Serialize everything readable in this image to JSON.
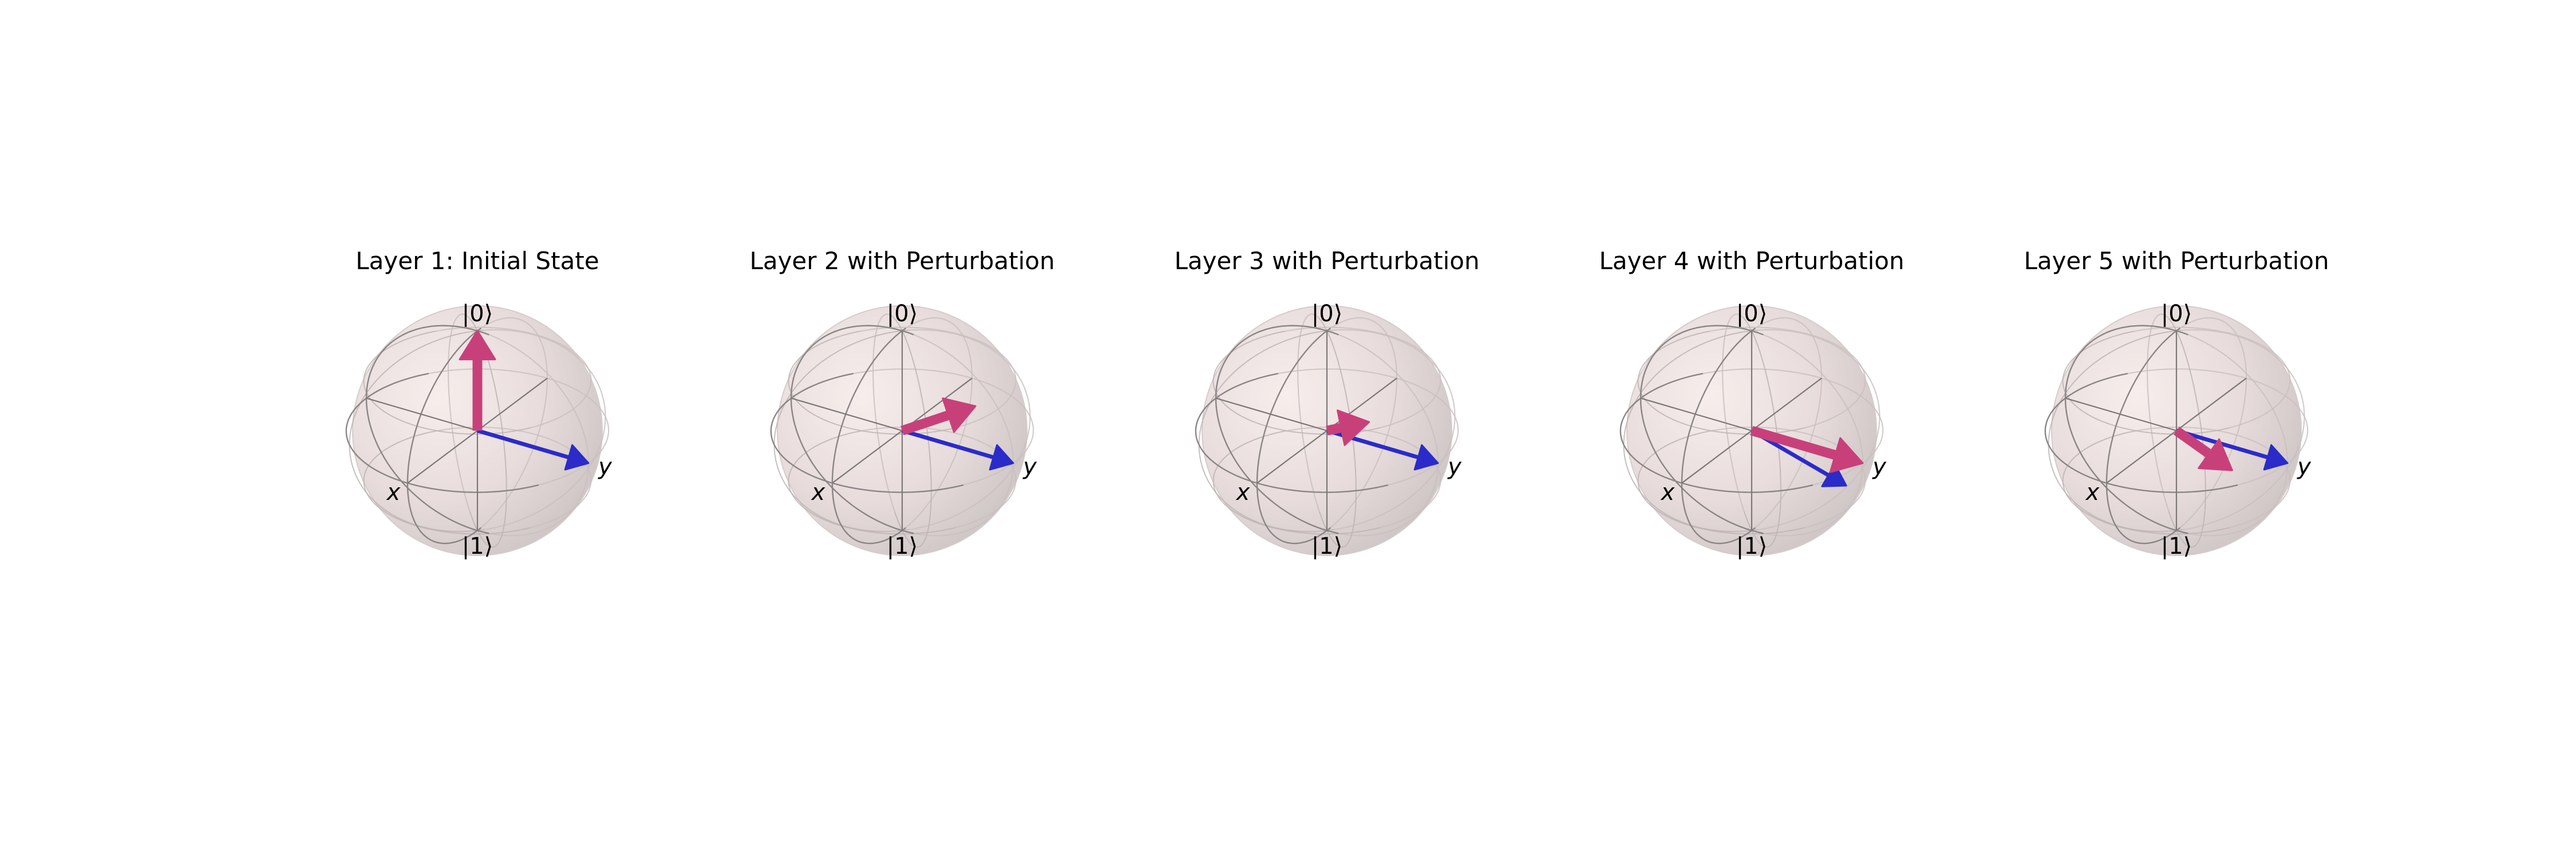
{
  "figure": {
    "panels": [
      {
        "title": "Layer 1: Initial State",
        "labels": {
          "north": "|0⟩",
          "south": "|1⟩",
          "x": "x",
          "y": "y"
        },
        "vectors": [
          {
            "role": "reference",
            "color": "#2b2bc9",
            "bloch": [
              0.0,
              1.0,
              0.0
            ]
          },
          {
            "role": "state",
            "color": "#c8407a",
            "bloch": [
              0.0,
              0.0,
              1.0
            ]
          }
        ]
      },
      {
        "title": "Layer 2 with Perturbation",
        "labels": {
          "north": "|0⟩",
          "south": "|1⟩",
          "x": "x",
          "y": "y"
        },
        "vectors": [
          {
            "role": "reference",
            "color": "#2b2bc9",
            "bloch": [
              0.0,
              1.0,
              0.0
            ]
          },
          {
            "role": "state",
            "color": "#c8407a",
            "bloch": [
              0.0,
              0.66,
              0.46
            ]
          }
        ]
      },
      {
        "title": "Layer 3 with Perturbation",
        "labels": {
          "north": "|0⟩",
          "south": "|1⟩",
          "x": "x",
          "y": "y"
        },
        "vectors": [
          {
            "role": "reference",
            "color": "#2b2bc9",
            "bloch": [
              0.0,
              1.0,
              0.0
            ]
          },
          {
            "role": "state",
            "color": "#c8407a",
            "bloch": [
              0.0,
              0.38,
              0.21
            ]
          }
        ]
      },
      {
        "title": "Layer 4 with Perturbation",
        "labels": {
          "north": "|0⟩",
          "south": "|1⟩",
          "x": "x",
          "y": "y"
        },
        "vectors": [
          {
            "role": "reference",
            "color": "#2b2bc9",
            "bloch": [
              -0.05,
              0.82,
              -0.31
            ]
          },
          {
            "role": "state",
            "color": "#c8407a",
            "bloch": [
              0.0,
              1.0,
              0.0
            ]
          }
        ]
      },
      {
        "title": "Layer 5 with Perturbation",
        "labels": {
          "north": "|0⟩",
          "south": "|1⟩",
          "x": "x",
          "y": "y"
        },
        "vectors": [
          {
            "role": "reference",
            "color": "#2b2bc9",
            "bloch": [
              0.0,
              1.0,
              0.0
            ]
          },
          {
            "role": "state",
            "color": "#c8407a",
            "bloch": [
              0.06,
              0.54,
              -0.19
            ]
          }
        ]
      }
    ]
  }
}
